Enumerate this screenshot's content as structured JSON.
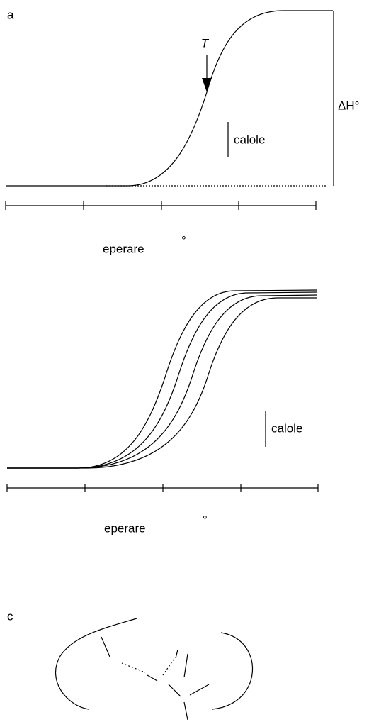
{
  "panel_a": {
    "label": "a",
    "arrow_label": "T",
    "height_label": "ΔH°",
    "scale_label": "calole",
    "axis_label": "eperare",
    "axis_unit": "°"
  },
  "panel_b": {
    "scale_label": "calole",
    "axis_label": "eperare",
    "axis_unit": "°"
  },
  "panel_c": {
    "label": "c"
  }
}
